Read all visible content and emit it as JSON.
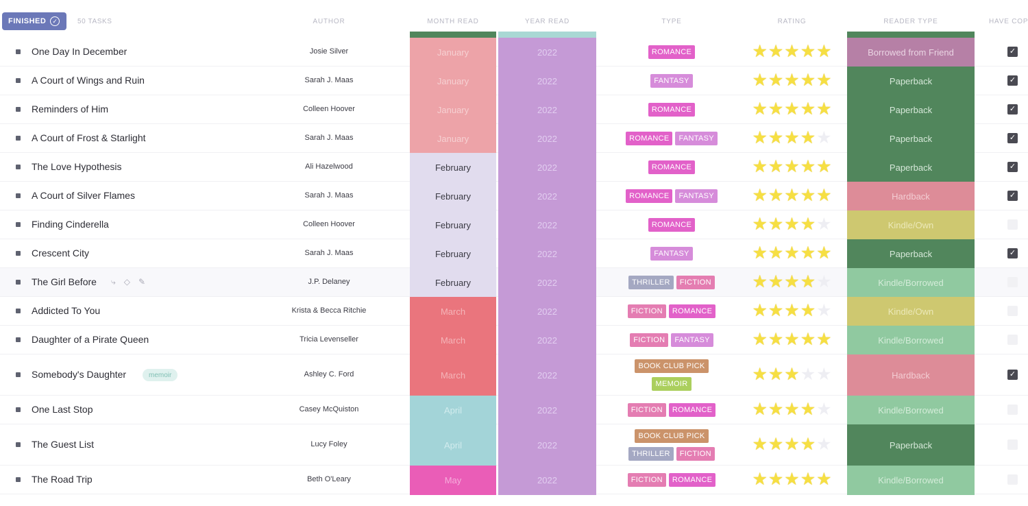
{
  "header": {
    "group_label": "FINISHED",
    "task_count": "50 TASKS",
    "columns": {
      "author": "AUTHOR",
      "month": "MONTH READ",
      "year": "YEAR READ",
      "type": "TYPE",
      "rating": "RATING",
      "reader": "READER TYPE",
      "have": "HAVE COP"
    }
  },
  "colors": {
    "January": {
      "bg": "#eda3a8",
      "fg": "#f6d0d2"
    },
    "February": {
      "bg": "#e1dcee",
      "fg": "#3b3b44"
    },
    "March": {
      "bg": "#ea757d",
      "fg": "#f5b5b9"
    },
    "April": {
      "bg": "#a3d4d8",
      "fg": "#d2ecee"
    },
    "May": {
      "bg": "#ea5db7",
      "fg": "#f6addc"
    },
    "ROMANCE": "#e159c7",
    "FANTASY": "#d486d9",
    "THRILLER": "#a0a4c0",
    "FICTION": "#e377ae",
    "BOOK CLUB PICK": "#c98e63",
    "MEMOIR": "#a7cd55",
    "Borrowed from Friend": {
      "bg": "#b680a6",
      "fg": "#ead4e3"
    },
    "Paperback": {
      "bg": "#51865c",
      "fg": "#d6e8d9"
    },
    "Hardback": {
      "bg": "#dd8c98",
      "fg": "#f3cdd3"
    },
    "Kindle/Own": {
      "bg": "#cec870",
      "fg": "#ece9b9"
    },
    "Kindle/Borrowed": {
      "bg": "#90c9a0",
      "fg": "#d4ecd9"
    }
  },
  "rows": [
    {
      "name": "One Day In December",
      "author": "Josie Silver",
      "month": "January",
      "year": "2022",
      "types": [
        [
          "ROMANCE"
        ]
      ],
      "rating": 5,
      "reader": "Borrowed from Friend",
      "have": true
    },
    {
      "name": "A Court of Wings and Ruin",
      "author": "Sarah J. Maas",
      "month": "January",
      "year": "2022",
      "types": [
        [
          "FANTASY"
        ]
      ],
      "rating": 5,
      "reader": "Paperback",
      "have": true
    },
    {
      "name": "Reminders of Him",
      "author": "Colleen Hoover",
      "month": "January",
      "year": "2022",
      "types": [
        [
          "ROMANCE"
        ]
      ],
      "rating": 5,
      "reader": "Paperback",
      "have": true
    },
    {
      "name": "A Court of Frost & Starlight",
      "author": "Sarah J. Maas",
      "month": "January",
      "year": "2022",
      "types": [
        [
          "ROMANCE",
          "FANTASY"
        ]
      ],
      "rating": 4,
      "reader": "Paperback",
      "have": true
    },
    {
      "name": "The Love Hypothesis",
      "author": "Ali Hazelwood",
      "month": "February",
      "year": "2022",
      "types": [
        [
          "ROMANCE"
        ]
      ],
      "rating": 5,
      "reader": "Paperback",
      "have": true
    },
    {
      "name": "A Court of Silver Flames",
      "author": "Sarah J. Maas",
      "month": "February",
      "year": "2022",
      "types": [
        [
          "ROMANCE",
          "FANTASY"
        ]
      ],
      "rating": 5,
      "reader": "Hardback",
      "have": true
    },
    {
      "name": "Finding Cinderella",
      "author": "Colleen Hoover",
      "month": "February",
      "year": "2022",
      "types": [
        [
          "ROMANCE"
        ]
      ],
      "rating": 4,
      "reader": "Kindle/Own",
      "have": false
    },
    {
      "name": "Crescent City",
      "author": "Sarah J. Maas",
      "month": "February",
      "year": "2022",
      "types": [
        [
          "FANTASY"
        ]
      ],
      "rating": 5,
      "reader": "Paperback",
      "have": true
    },
    {
      "name": "The Girl Before",
      "author": "J.P. Delaney",
      "month": "February",
      "year": "2022",
      "types": [
        [
          "THRILLER",
          "FICTION"
        ]
      ],
      "rating": 4,
      "reader": "Kindle/Borrowed",
      "have": false,
      "hovered": true
    },
    {
      "name": "Addicted To You",
      "author": "Krista & Becca Ritchie",
      "month": "March",
      "year": "2022",
      "types": [
        [
          "FICTION",
          "ROMANCE"
        ]
      ],
      "rating": 4,
      "reader": "Kindle/Own",
      "have": false
    },
    {
      "name": "Daughter of a Pirate Queen",
      "author": "Tricia Levenseller",
      "month": "March",
      "year": "2022",
      "types": [
        [
          "FICTION",
          "FANTASY"
        ]
      ],
      "rating": 5,
      "reader": "Kindle/Borrowed",
      "have": false
    },
    {
      "name": "Somebody's Daughter",
      "tag": "memoir",
      "author": "Ashley C. Ford",
      "month": "March",
      "year": "2022",
      "types": [
        [
          "BOOK CLUB PICK"
        ],
        [
          "MEMOIR"
        ]
      ],
      "rating": 3,
      "reader": "Hardback",
      "have": true
    },
    {
      "name": "One Last Stop",
      "author": "Casey McQuiston",
      "month": "April",
      "year": "2022",
      "types": [
        [
          "FICTION",
          "ROMANCE"
        ]
      ],
      "rating": 4,
      "reader": "Kindle/Borrowed",
      "have": false
    },
    {
      "name": "The Guest List",
      "author": "Lucy Foley",
      "month": "April",
      "year": "2022",
      "types": [
        [
          "BOOK CLUB PICK"
        ],
        [
          "THRILLER",
          "FICTION"
        ]
      ],
      "rating": 4,
      "reader": "Paperback",
      "have": false
    },
    {
      "name": "The Road Trip",
      "author": "Beth O'Leary",
      "month": "May",
      "year": "2022",
      "types": [
        [
          "FICTION",
          "ROMANCE"
        ]
      ],
      "rating": 5,
      "reader": "Kindle/Borrowed",
      "have": false
    }
  ]
}
